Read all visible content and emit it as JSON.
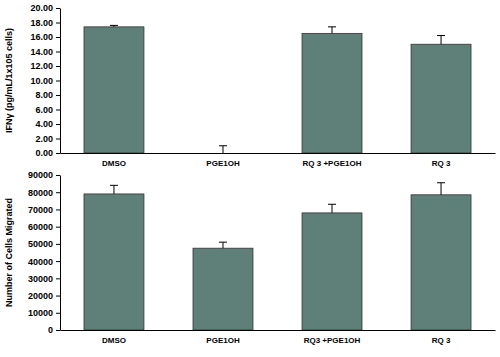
{
  "chart_data": [
    {
      "type": "bar",
      "y_label": "IFNγ (pg/mL/1x105 cells)",
      "categories": [
        "DMSO",
        "PGE1OH",
        "RQ 3 +PGE1OH",
        "RQ 3"
      ],
      "values": [
        17.4,
        0,
        16.5,
        15.0
      ],
      "errors": [
        0.2,
        1.0,
        0.9,
        1.2
      ],
      "color": "#5f7f79",
      "ylim": [
        0,
        20
      ],
      "yticks": [
        {
          "value": 0,
          "label": "0.00"
        },
        {
          "value": 2,
          "label": "2.00"
        },
        {
          "value": 4,
          "label": "4.00"
        },
        {
          "value": 6,
          "label": "6.00"
        },
        {
          "value": 8,
          "label": "8.00"
        },
        {
          "value": 10,
          "label": "10.00"
        },
        {
          "value": 12,
          "label": "12.00"
        },
        {
          "value": 14,
          "label": "14.00"
        },
        {
          "value": 16,
          "label": "16.00"
        },
        {
          "value": 18,
          "label": "18.00"
        },
        {
          "value": 20,
          "label": "20.00"
        }
      ]
    },
    {
      "type": "bar",
      "y_label": "Number of Cells Migrated",
      "categories": [
        "DMSO",
        "PGE1OH",
        "RQ3 +PGE1OH",
        "RQ 3"
      ],
      "values": [
        79000,
        47500,
        68000,
        78500
      ],
      "errors": [
        5000,
        3500,
        5000,
        7000
      ],
      "color": "#5f7f79",
      "ylim": [
        0,
        90000
      ],
      "yticks": [
        0,
        10000,
        20000,
        30000,
        40000,
        50000,
        60000,
        70000,
        80000,
        90000
      ]
    }
  ]
}
